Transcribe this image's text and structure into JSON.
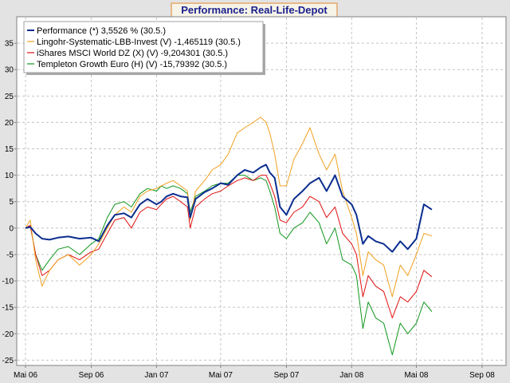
{
  "chart_data": {
    "type": "line",
    "title": "Performance: Real-Life-Depot",
    "xlabel": "",
    "ylabel": "",
    "ylim": [
      -26,
      40
    ],
    "y_ticks": [
      -25,
      -20,
      -15,
      -10,
      -5,
      0,
      5,
      10,
      15,
      20,
      25,
      30,
      35
    ],
    "x_ticks": [
      "Mai 06",
      "Sep 06",
      "Jan 07",
      "Mai 07",
      "Sep 07",
      "Jan 08",
      "Mai 08",
      "Sep 08"
    ],
    "grid": true,
    "legend_position": "top-left",
    "series": [
      {
        "name": "Performance (*) 3,5526 % (30.5.)",
        "color": "#0b2d8f",
        "x": [
          "2006-05-01",
          "2006-05-10",
          "2006-05-20",
          "2006-06-01",
          "2006-06-15",
          "2006-07-01",
          "2006-07-20",
          "2006-08-10",
          "2006-09-01",
          "2006-09-15",
          "2006-10-01",
          "2006-10-15",
          "2006-11-01",
          "2006-11-15",
          "2006-12-01",
          "2006-12-15",
          "2007-01-01",
          "2007-01-10",
          "2007-01-20",
          "2007-02-01",
          "2007-02-15",
          "2007-02-28",
          "2007-03-05",
          "2007-03-15",
          "2007-04-01",
          "2007-04-15",
          "2007-05-01",
          "2007-05-15",
          "2007-06-01",
          "2007-06-15",
          "2007-07-01",
          "2007-07-15",
          "2007-07-25",
          "2007-08-01",
          "2007-08-10",
          "2007-08-20",
          "2007-09-01",
          "2007-09-15",
          "2007-10-01",
          "2007-10-15",
          "2007-11-01",
          "2007-11-15",
          "2007-12-01",
          "2007-12-15",
          "2008-01-01",
          "2008-01-10",
          "2008-01-22",
          "2008-02-01",
          "2008-02-15",
          "2008-03-01",
          "2008-03-17",
          "2008-04-01",
          "2008-04-15",
          "2008-05-01",
          "2008-05-15",
          "2008-05-30"
        ],
        "y": [
          0,
          0.2,
          -1,
          -2,
          -2.2,
          -1.8,
          -1.6,
          -2,
          -1.8,
          -2.5,
          0.5,
          2.5,
          2.8,
          2,
          4.5,
          5.5,
          4.5,
          5,
          6,
          6.5,
          6,
          5.8,
          2,
          5.5,
          6.8,
          7.5,
          8.5,
          8.2,
          10,
          11,
          10.5,
          11.5,
          12,
          10.5,
          9.5,
          4,
          2.5,
          5.5,
          7,
          8.5,
          9.5,
          7,
          10,
          6,
          4.5,
          2.5,
          -3,
          -1.5,
          -2.5,
          -3,
          -4.5,
          -2.5,
          -4,
          -2,
          4.5,
          3.5
        ]
      },
      {
        "name": "Lingohr-Systematic-LBB-Invest (V) -1,465119 (30.5.)",
        "color": "#f0a020",
        "x": [
          "2006-05-01",
          "2006-05-10",
          "2006-05-20",
          "2006-06-01",
          "2006-06-15",
          "2006-07-01",
          "2006-07-20",
          "2006-08-10",
          "2006-09-01",
          "2006-09-15",
          "2006-10-01",
          "2006-10-15",
          "2006-11-01",
          "2006-11-15",
          "2006-12-01",
          "2006-12-15",
          "2007-01-01",
          "2007-01-10",
          "2007-01-20",
          "2007-02-01",
          "2007-02-15",
          "2007-02-28",
          "2007-03-05",
          "2007-03-15",
          "2007-04-01",
          "2007-04-15",
          "2007-05-01",
          "2007-05-15",
          "2007-06-01",
          "2007-06-15",
          "2007-07-01",
          "2007-07-15",
          "2007-07-25",
          "2007-08-01",
          "2007-08-10",
          "2007-08-20",
          "2007-09-01",
          "2007-09-15",
          "2007-10-01",
          "2007-10-15",
          "2007-11-01",
          "2007-11-15",
          "2007-12-01",
          "2007-12-15",
          "2008-01-01",
          "2008-01-10",
          "2008-01-22",
          "2008-02-01",
          "2008-02-15",
          "2008-03-01",
          "2008-03-17",
          "2008-04-01",
          "2008-04-15",
          "2008-05-01",
          "2008-05-15",
          "2008-05-30"
        ],
        "y": [
          0,
          1.5,
          -6,
          -11,
          -8,
          -6,
          -5,
          -7,
          -5,
          -3,
          0,
          2.5,
          4,
          3,
          6,
          7,
          7.5,
          8,
          8.5,
          9,
          8,
          7,
          1.5,
          7,
          9,
          11,
          12,
          14,
          18,
          19,
          20,
          21,
          20,
          18,
          14,
          8,
          8,
          13,
          16,
          19,
          14,
          11,
          14,
          7,
          2,
          -1,
          -9,
          -4.5,
          -6,
          -7,
          -13,
          -7,
          -9,
          -5,
          -1,
          -1.5
        ]
      },
      {
        "name": "iShares MSCI World DZ (X) (V) -9,204301 (30.5.)",
        "color": "#e01010",
        "x": [
          "2006-05-01",
          "2006-05-10",
          "2006-05-20",
          "2006-06-01",
          "2006-06-15",
          "2006-07-01",
          "2006-07-20",
          "2006-08-10",
          "2006-09-01",
          "2006-09-15",
          "2006-10-01",
          "2006-10-15",
          "2006-11-01",
          "2006-11-15",
          "2006-12-01",
          "2006-12-15",
          "2007-01-01",
          "2007-01-10",
          "2007-01-20",
          "2007-02-01",
          "2007-02-15",
          "2007-02-28",
          "2007-03-05",
          "2007-03-15",
          "2007-04-01",
          "2007-04-15",
          "2007-05-01",
          "2007-05-15",
          "2007-06-01",
          "2007-06-15",
          "2007-07-01",
          "2007-07-15",
          "2007-07-25",
          "2007-08-01",
          "2007-08-10",
          "2007-08-20",
          "2007-09-01",
          "2007-09-15",
          "2007-10-01",
          "2007-10-15",
          "2007-11-01",
          "2007-11-15",
          "2007-12-01",
          "2007-12-15",
          "2008-01-01",
          "2008-01-10",
          "2008-01-22",
          "2008-02-01",
          "2008-02-15",
          "2008-03-01",
          "2008-03-17",
          "2008-04-01",
          "2008-04-15",
          "2008-05-01",
          "2008-05-15",
          "2008-05-30"
        ],
        "y": [
          0,
          0.5,
          -5,
          -9,
          -8,
          -6,
          -5,
          -6,
          -4.5,
          -4,
          -1,
          1.5,
          2,
          0,
          3,
          4,
          3.5,
          4.5,
          5.5,
          6,
          5,
          4,
          0,
          4,
          5.5,
          6.5,
          7,
          8,
          9,
          9.5,
          9,
          10,
          10,
          8.5,
          6,
          1.5,
          1,
          3,
          4,
          6,
          5,
          2,
          4,
          -1,
          -3,
          -5,
          -13,
          -9,
          -11,
          -12,
          -17,
          -13,
          -14,
          -12,
          -8,
          -9.2
        ]
      },
      {
        "name": "Templeton Growth Euro (H) (V) -15,79392 (30.5.)",
        "color": "#10961e",
        "x": [
          "2006-05-01",
          "2006-05-10",
          "2006-05-20",
          "2006-06-01",
          "2006-06-15",
          "2006-07-01",
          "2006-07-20",
          "2006-08-10",
          "2006-09-01",
          "2006-09-15",
          "2006-10-01",
          "2006-10-15",
          "2006-11-01",
          "2006-11-15",
          "2006-12-01",
          "2006-12-15",
          "2007-01-01",
          "2007-01-10",
          "2007-01-20",
          "2007-02-01",
          "2007-02-15",
          "2007-02-28",
          "2007-03-05",
          "2007-03-15",
          "2007-04-01",
          "2007-04-15",
          "2007-05-01",
          "2007-05-15",
          "2007-06-01",
          "2007-06-15",
          "2007-07-01",
          "2007-07-15",
          "2007-07-25",
          "2007-08-01",
          "2007-08-10",
          "2007-08-20",
          "2007-09-01",
          "2007-09-15",
          "2007-10-01",
          "2007-10-15",
          "2007-11-01",
          "2007-11-15",
          "2007-12-01",
          "2007-12-15",
          "2008-01-01",
          "2008-01-10",
          "2008-01-22",
          "2008-02-01",
          "2008-02-15",
          "2008-03-01",
          "2008-03-17",
          "2008-04-01",
          "2008-04-15",
          "2008-05-01",
          "2008-05-15",
          "2008-05-30"
        ],
        "y": [
          0,
          0.5,
          -5,
          -8,
          -6,
          -4,
          -3.5,
          -5,
          -3,
          -2,
          2,
          4.5,
          5,
          4,
          6.5,
          7.5,
          7,
          8,
          7.5,
          8,
          7.5,
          6.5,
          3,
          6,
          7,
          8,
          8.5,
          8.5,
          10,
          10,
          9,
          9.5,
          9,
          7,
          4,
          -1,
          -2,
          0,
          1,
          3,
          1,
          -3,
          0,
          -6,
          -7,
          -9,
          -19,
          -14,
          -17,
          -18,
          -24,
          -18,
          -20,
          -18,
          -14,
          -15.8
        ]
      }
    ]
  }
}
